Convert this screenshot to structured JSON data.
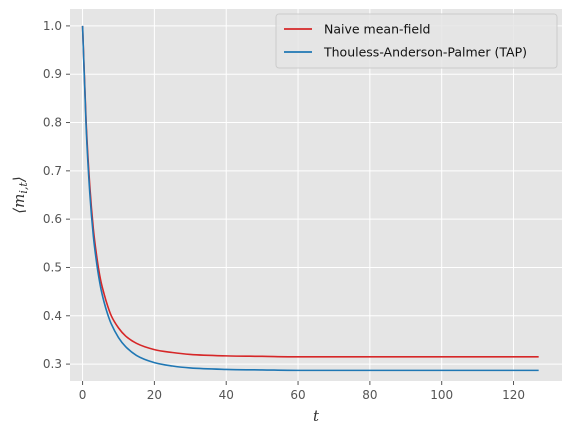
{
  "chart_data": {
    "type": "line",
    "xlabel": "t",
    "ylabel": "⟨m_{i,t}⟩",
    "xlim": [
      -3.5,
      133.5
    ],
    "ylim": [
      0.265,
      1.035
    ],
    "xticks": [
      0,
      20,
      40,
      60,
      80,
      100,
      120
    ],
    "yticks": [
      0.3,
      0.4,
      0.5,
      0.6,
      0.7,
      0.8,
      0.9,
      1.0
    ],
    "xtick_labels": [
      "0",
      "20",
      "40",
      "60",
      "80",
      "100",
      "120"
    ],
    "ytick_labels": [
      "0.3",
      "0.4",
      "0.5",
      "0.6",
      "0.7",
      "0.8",
      "0.9",
      "1.0"
    ],
    "grid": true,
    "legend_position": "top-right",
    "style": {
      "background": "#e5e5e5",
      "grid_color": "#ffffff"
    },
    "series": [
      {
        "name": "Naive mean-field",
        "color": "#d62728",
        "x": [
          0,
          1,
          2,
          3,
          4,
          5,
          6,
          7,
          8,
          10,
          12,
          15,
          20,
          25,
          30,
          40,
          50,
          60,
          80,
          100,
          127
        ],
        "y": [
          1.0,
          0.8,
          0.67,
          0.58,
          0.52,
          0.475,
          0.445,
          0.42,
          0.4,
          0.375,
          0.358,
          0.343,
          0.33,
          0.324,
          0.32,
          0.317,
          0.316,
          0.315,
          0.315,
          0.315,
          0.315
        ]
      },
      {
        "name": "Thouless-Anderson-Palmer (TAP)",
        "color": "#1f77b4",
        "x": [
          0,
          1,
          2,
          3,
          4,
          5,
          6,
          7,
          8,
          10,
          12,
          15,
          20,
          25,
          30,
          40,
          50,
          60,
          80,
          100,
          127
        ],
        "y": [
          1.0,
          0.79,
          0.655,
          0.565,
          0.505,
          0.46,
          0.428,
          0.403,
          0.383,
          0.355,
          0.336,
          0.318,
          0.303,
          0.296,
          0.292,
          0.289,
          0.288,
          0.287,
          0.287,
          0.287,
          0.287
        ]
      }
    ]
  }
}
